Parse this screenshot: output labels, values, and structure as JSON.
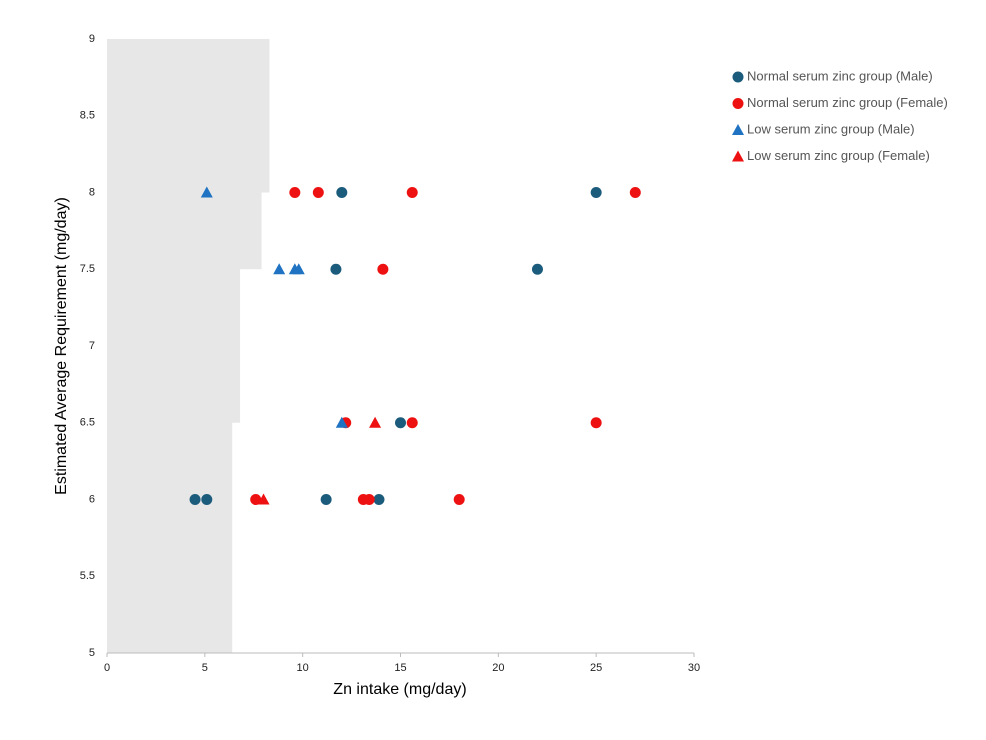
{
  "chart_data": {
    "type": "scatter",
    "x_label": "Zn intake (mg/day)",
    "y_label": "Estimated Average Requirement  (mg/day)",
    "xlim": [
      0,
      30
    ],
    "xticks": [
      0,
      5,
      10,
      15,
      20,
      25,
      30
    ],
    "ylim": [
      5,
      9
    ],
    "yticks": [
      5,
      5.5,
      6,
      6.5,
      7,
      7.5,
      8,
      8.5,
      9
    ],
    "grid": false,
    "legend": "right",
    "shaded_region": {
      "color": "#e7e7e7",
      "x": [
        8.3,
        8.3,
        7.9,
        7.9,
        6.8,
        6.8,
        6.4,
        6.4
      ],
      "y": [
        9,
        8,
        8,
        7.5,
        7.5,
        6.5,
        6.5,
        5
      ]
    },
    "series": [
      {
        "name": "Normal serum zinc group (Male)",
        "color": "#1b5b7c",
        "marker": "circle",
        "x": [
          4.5,
          5.1,
          11.2,
          13.9,
          15.0,
          11.7,
          12.0,
          22.0,
          25.0
        ],
        "y": [
          6,
          6,
          6,
          6,
          6.5,
          7.5,
          8,
          7.5,
          8
        ]
      },
      {
        "name": "Normal serum zinc group (Female)",
        "color": "#ee1111",
        "marker": "circle",
        "x": [
          7.6,
          13.1,
          13.4,
          18.0,
          12.2,
          15.6,
          25.0,
          14.1,
          9.6,
          10.8,
          15.6,
          27.0
        ],
        "y": [
          6,
          6,
          6,
          6,
          6.5,
          6.5,
          6.5,
          7.5,
          8,
          8,
          8,
          8
        ]
      },
      {
        "name": "Low serum zinc group (Male)",
        "color": "#1f73c2",
        "marker": "triangle",
        "x": [
          5.1,
          8.8,
          9.6,
          9.8,
          12.0
        ],
        "y": [
          8,
          7.5,
          7.5,
          7.5,
          6.5
        ]
      },
      {
        "name": "Low serum zinc group (Female)",
        "color": "#ee1111",
        "marker": "triangle",
        "x": [
          8.0,
          13.7
        ],
        "y": [
          6,
          6.5
        ]
      }
    ]
  }
}
